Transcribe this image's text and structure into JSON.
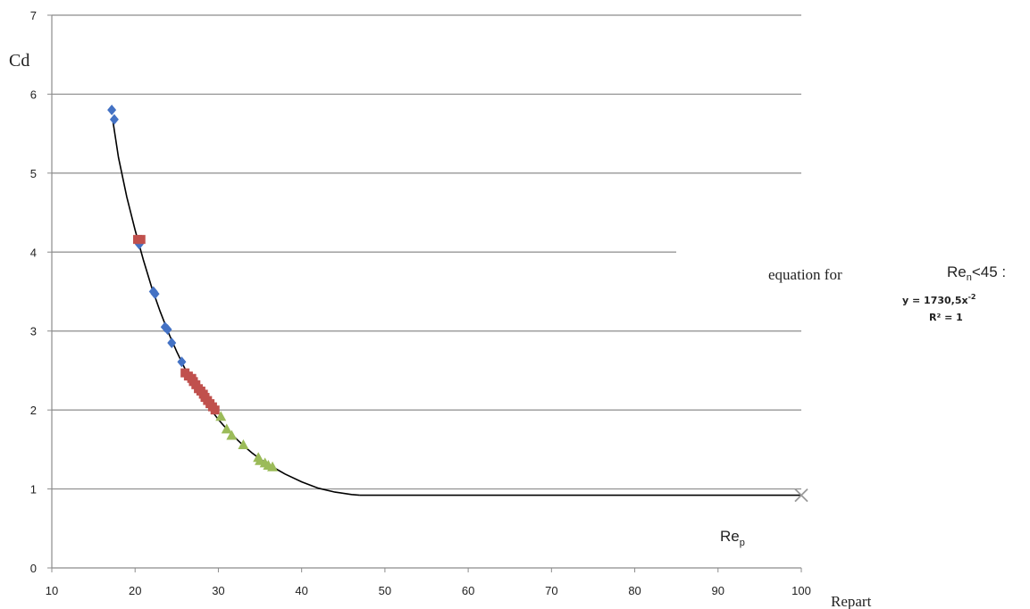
{
  "chart_data": {
    "type": "scatter",
    "xlabel": "Repart",
    "ylabel": "Cd",
    "xlim": [
      10,
      100
    ],
    "ylim": [
      0,
      7
    ],
    "x_ticks": [
      "10",
      "20",
      "30",
      "40",
      "50",
      "60",
      "70",
      "80",
      "90",
      "100"
    ],
    "y_ticks": [
      "0",
      "1",
      "2",
      "3",
      "4",
      "5",
      "6",
      "7"
    ],
    "grid": "horizontal",
    "colors": {
      "blue": "#4472C4",
      "red": "#C0504D",
      "green": "#9BBB59",
      "gray": "#999999",
      "line": "#000000"
    },
    "series": [
      {
        "marker": "diamond",
        "color": "#4472C4",
        "points": [
          [
            17.2,
            5.8
          ],
          [
            17.5,
            5.68
          ],
          [
            20.5,
            4.1
          ],
          [
            22.2,
            3.5
          ],
          [
            22.4,
            3.47
          ],
          [
            23.6,
            3.05
          ],
          [
            23.9,
            3.02
          ],
          [
            24.4,
            2.85
          ],
          [
            25.6,
            2.61
          ]
        ]
      },
      {
        "marker": "square",
        "color": "#C0504D",
        "points": [
          [
            20.3,
            4.16
          ],
          [
            20.7,
            4.16
          ],
          [
            26.0,
            2.47
          ],
          [
            26.4,
            2.43
          ],
          [
            26.8,
            2.4
          ],
          [
            27.0,
            2.36
          ],
          [
            27.3,
            2.32
          ],
          [
            27.6,
            2.27
          ],
          [
            27.9,
            2.24
          ],
          [
            28.2,
            2.2
          ],
          [
            28.4,
            2.16
          ],
          [
            28.7,
            2.12
          ],
          [
            29.0,
            2.08
          ],
          [
            29.3,
            2.04
          ],
          [
            29.6,
            2.0
          ]
        ]
      },
      {
        "marker": "triangle",
        "color": "#9BBB59",
        "points": [
          [
            30.3,
            1.92
          ],
          [
            31.0,
            1.76
          ],
          [
            31.6,
            1.68
          ],
          [
            33.0,
            1.56
          ],
          [
            34.8,
            1.4
          ],
          [
            35.0,
            1.36
          ],
          [
            35.6,
            1.33
          ],
          [
            36.0,
            1.3
          ],
          [
            36.5,
            1.28
          ]
        ]
      },
      {
        "marker": "x",
        "color": "#999999",
        "points": [
          [
            100,
            0.92
          ]
        ]
      }
    ],
    "trendline": {
      "fit": [
        [
          17.3,
          5.68
        ],
        [
          18,
          5.2
        ],
        [
          19,
          4.7
        ],
        [
          20,
          4.28
        ],
        [
          21,
          3.9
        ],
        [
          22,
          3.55
        ],
        [
          23,
          3.25
        ],
        [
          24,
          2.98
        ],
        [
          25,
          2.74
        ],
        [
          26,
          2.52
        ],
        [
          27,
          2.34
        ],
        [
          28,
          2.17
        ],
        [
          29,
          2.02
        ],
        [
          30,
          1.88
        ],
        [
          31,
          1.76
        ],
        [
          32,
          1.65
        ],
        [
          33,
          1.55
        ],
        [
          34,
          1.46
        ],
        [
          35,
          1.38
        ],
        [
          36,
          1.31
        ],
        [
          37,
          1.25
        ],
        [
          38,
          1.19
        ],
        [
          40,
          1.09
        ],
        [
          42,
          1.01
        ],
        [
          44,
          0.96
        ],
        [
          46,
          0.93
        ],
        [
          47,
          0.92
        ]
      ],
      "flat": [
        [
          47,
          0.92
        ],
        [
          100,
          0.92
        ]
      ]
    },
    "annotations": {
      "rep_label": "Re",
      "rep_sub": "p",
      "equation_prefix": "equation for",
      "cond_main": "Re",
      "cond_sub": "n",
      "cond_rest": "<45  :",
      "eq_y": "y = 1730,5x",
      "eq_exp": "-2",
      "eq_r2": "R² = 1"
    }
  }
}
